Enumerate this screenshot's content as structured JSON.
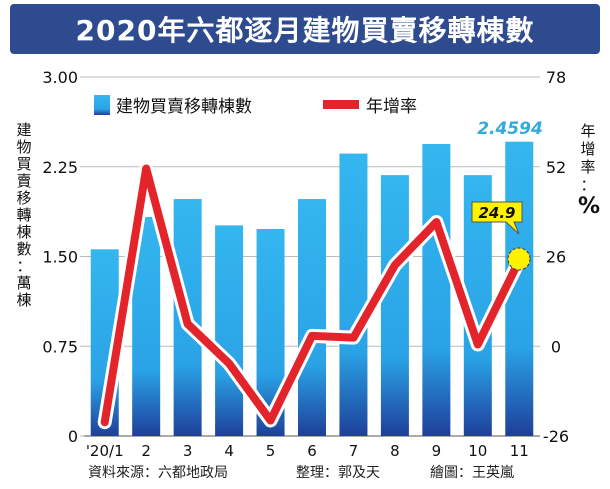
{
  "title": "2020年六都逐月建物買賣移轉棟數",
  "left_axis_label": [
    "建",
    "物",
    "買",
    "賣",
    "移",
    "轉",
    "棟",
    "數",
    "：",
    "萬",
    "棟"
  ],
  "right_axis_label": [
    "年",
    "增",
    "率",
    "：",
    "%"
  ],
  "legend": {
    "bars": "建物買賣移轉棟數",
    "line": "年增率"
  },
  "annotations": {
    "last_bar": "2.4594",
    "last_point": "24.9"
  },
  "footer": {
    "source": "資料來源：六都地政局",
    "editor": "整理：郭及天",
    "artist": "繪圖：王英嵐"
  },
  "colors": {
    "bar_top": "#34b6ef",
    "bar_bottom": "#1e3f9a",
    "line": "#e3242b",
    "title_bg": "#2e4b8f",
    "highlight": "#33aadd",
    "callout": "#fff200"
  },
  "chart_data": {
    "type": "bar+line",
    "categories": [
      "'20/1",
      "2",
      "3",
      "4",
      "5",
      "6",
      "7",
      "8",
      "9",
      "10",
      "11"
    ],
    "series": [
      {
        "name": "建物買賣移轉棟數",
        "axis": "left",
        "values": [
          1.56,
          1.83,
          1.98,
          1.76,
          1.73,
          1.98,
          2.36,
          2.18,
          2.44,
          2.18,
          2.4594
        ]
      },
      {
        "name": "年增率",
        "axis": "right",
        "values": [
          -22,
          51.5,
          6.5,
          -5,
          -21.5,
          3,
          2.5,
          23.5,
          36,
          0.5,
          24.9
        ]
      }
    ],
    "left_ticks": [
      "3.00",
      "2.25",
      "1.50",
      "0.75",
      "0"
    ],
    "left_range": [
      0,
      3
    ],
    "right_ticks": [
      "78",
      "52",
      "26",
      "0",
      "-26"
    ],
    "right_range": [
      -26,
      78
    ],
    "grid": true
  }
}
